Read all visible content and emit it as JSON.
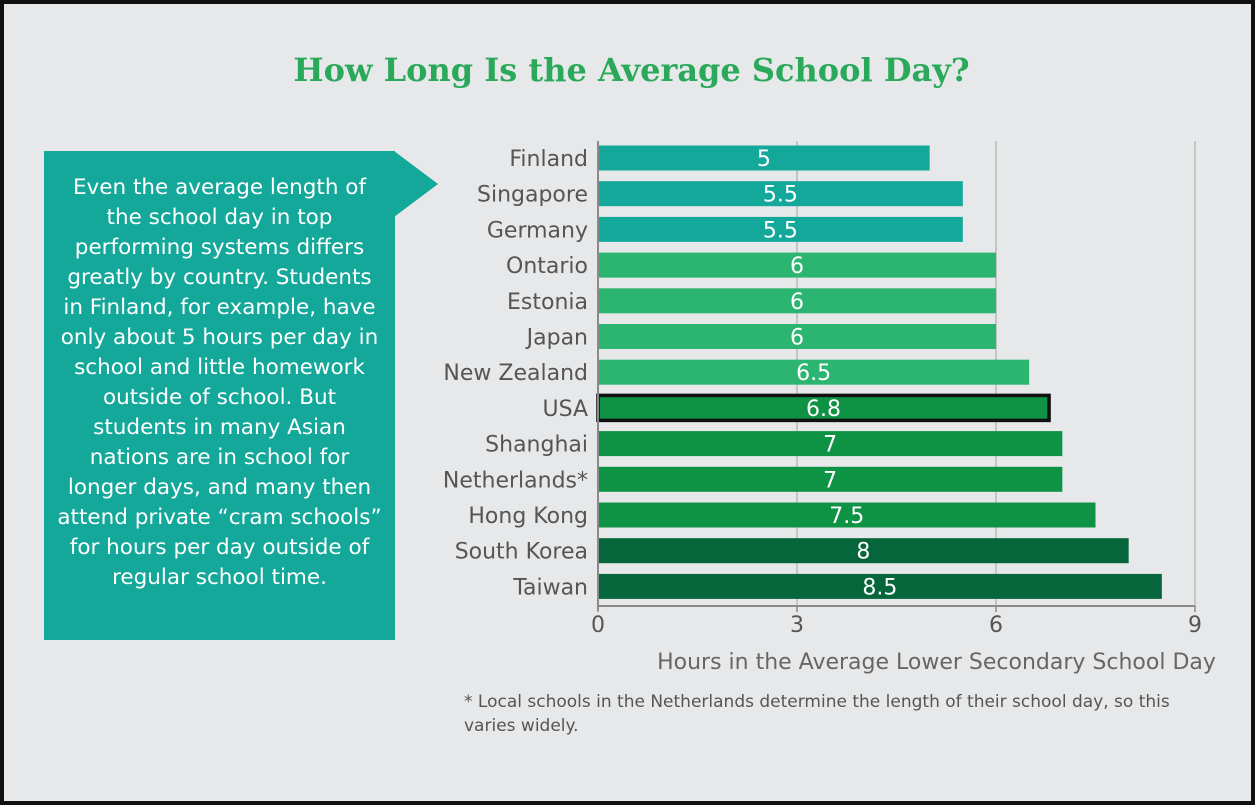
{
  "title": "How Long Is the Average School Day?",
  "callout": {
    "text": "Even the average length of the school day in top performing systems differs greatly by country. Students in Finland, for example, have only about 5 hours per day in school and little homework outside of school. But students in many Asian nations are in school for longer days, and many then attend private “cram schools” for hours per day outside of regular school time."
  },
  "footnote": "* Local schools in the Netherlands determine the length of their school day, so this varies widely.",
  "colors": {
    "teal": "#14a89a",
    "light_green": "#2bb571",
    "mid_green": "#0e9244",
    "dark_green": "#04663a",
    "highlight_border": "#111111",
    "title": "#2aa95b"
  },
  "chart_data": {
    "type": "bar",
    "orientation": "horizontal",
    "categories": [
      "Finland",
      "Singapore",
      "Germany",
      "Ontario",
      "Estonia",
      "Japan",
      "New Zealand",
      "USA",
      "Shanghai",
      "Netherlands*",
      "Hong Kong",
      "South Korea",
      "Taiwan"
    ],
    "values": [
      5,
      5.5,
      5.5,
      6,
      6,
      6,
      6.5,
      6.8,
      7,
      7,
      7.5,
      8,
      8.5
    ],
    "bar_colors": [
      "#14a89a",
      "#14a89a",
      "#14a89a",
      "#2bb571",
      "#2bb571",
      "#2bb571",
      "#2bb571",
      "#0e9244",
      "#0e9244",
      "#0e9244",
      "#0e9244",
      "#04663a",
      "#04663a"
    ],
    "highlighted": "USA",
    "xlabel": "Hours in the Average Lower Secondary School Day",
    "ylabel": "",
    "xlim": [
      0,
      9
    ],
    "xticks": [
      0,
      3,
      6,
      9
    ],
    "grid": "vertical"
  }
}
